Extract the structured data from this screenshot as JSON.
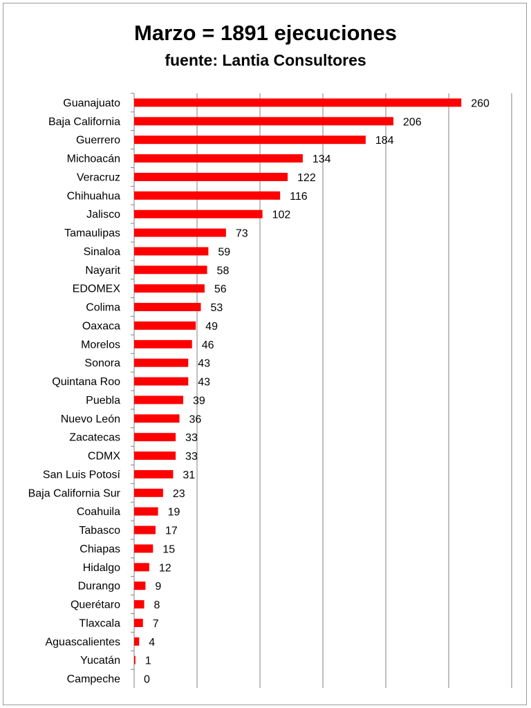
{
  "chart_data": {
    "type": "bar",
    "orientation": "horizontal",
    "title": "Marzo = 1891 ejecuciones",
    "subtitle": "fuente: Lantia Consultores",
    "xlim": [
      0,
      300
    ],
    "grid": true,
    "bar_color": "#ff0000",
    "categories": [
      "Guanajuato",
      "Baja California",
      "Guerrero",
      "Michoacán",
      "Veracruz",
      "Chihuahua",
      "Jalisco",
      "Tamaulipas",
      "Sinaloa",
      "Nayarit",
      "EDOMEX",
      "Colima",
      "Oaxaca",
      "Morelos",
      "Sonora",
      "Quintana Roo",
      "Puebla",
      "Nuevo León",
      "Zacatecas",
      "CDMX",
      "San Luis Potosí",
      "Baja California Sur",
      "Coahuila",
      "Tabasco",
      "Chiapas",
      "Hidalgo",
      "Durango",
      "Querétaro",
      "Tlaxcala",
      "Aguascalientes",
      "Yucatán",
      "Campeche"
    ],
    "values": [
      260,
      206,
      184,
      134,
      122,
      116,
      102,
      73,
      59,
      58,
      56,
      53,
      49,
      46,
      43,
      43,
      39,
      36,
      33,
      33,
      31,
      23,
      19,
      17,
      15,
      12,
      9,
      8,
      7,
      4,
      1,
      0
    ]
  }
}
